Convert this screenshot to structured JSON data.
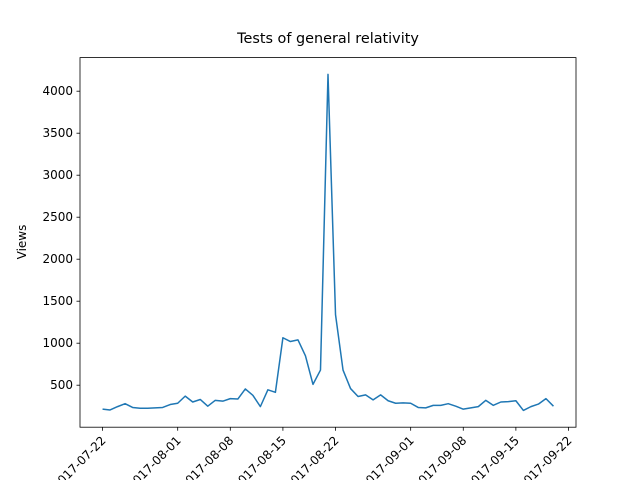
{
  "chart_data": {
    "type": "line",
    "title": "Tests of general relativity",
    "y_label": "Views",
    "x": [
      "2017-07-22",
      "2017-07-23",
      "2017-07-24",
      "2017-07-25",
      "2017-07-26",
      "2017-07-27",
      "2017-07-28",
      "2017-07-29",
      "2017-07-30",
      "2017-07-31",
      "2017-08-01",
      "2017-08-02",
      "2017-08-03",
      "2017-08-04",
      "2017-08-05",
      "2017-08-06",
      "2017-08-07",
      "2017-08-08",
      "2017-08-09",
      "2017-08-10",
      "2017-08-11",
      "2017-08-12",
      "2017-08-13",
      "2017-08-14",
      "2017-08-15",
      "2017-08-16",
      "2017-08-17",
      "2017-08-18",
      "2017-08-19",
      "2017-08-20",
      "2017-08-21",
      "2017-08-22",
      "2017-08-23",
      "2017-08-24",
      "2017-08-25",
      "2017-08-26",
      "2017-08-27",
      "2017-08-28",
      "2017-08-29",
      "2017-08-30",
      "2017-08-31",
      "2017-09-01",
      "2017-09-02",
      "2017-09-03",
      "2017-09-04",
      "2017-09-05",
      "2017-09-06",
      "2017-09-07",
      "2017-09-08",
      "2017-09-09",
      "2017-09-10",
      "2017-09-11",
      "2017-09-12",
      "2017-09-13",
      "2017-09-14",
      "2017-09-15",
      "2017-09-16",
      "2017-09-17",
      "2017-09-18",
      "2017-09-19",
      "2017-09-20"
    ],
    "series": [
      {
        "name": "Views",
        "color": "#1f77b4",
        "values": [
          215,
          205,
          245,
          280,
          235,
          225,
          225,
          230,
          235,
          270,
          285,
          370,
          300,
          330,
          250,
          320,
          310,
          340,
          335,
          455,
          380,
          245,
          445,
          415,
          1065,
          1020,
          1040,
          850,
          510,
          680,
          4200,
          1340,
          680,
          460,
          365,
          385,
          325,
          385,
          315,
          285,
          290,
          285,
          235,
          230,
          260,
          260,
          280,
          250,
          215,
          230,
          245,
          320,
          260,
          300,
          305,
          315,
          200,
          245,
          275,
          340,
          250
        ]
      }
    ],
    "xlim": [
      "2017-07-19",
      "2017-09-23"
    ],
    "xticks": [
      "2017-07-22",
      "2017-08-01",
      "2017-08-08",
      "2017-08-15",
      "2017-08-22",
      "2017-09-01",
      "2017-09-08",
      "2017-09-15",
      "2017-09-22"
    ],
    "ylim": [
      0,
      4400
    ],
    "yticks": [
      500,
      1000,
      1500,
      2000,
      2500,
      3000,
      3500,
      4000
    ]
  }
}
